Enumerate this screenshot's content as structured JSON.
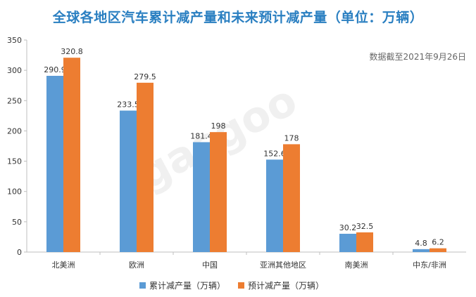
{
  "header": {
    "title": "全球各地区汽车累计减产量和未来预计减产量（单位：万辆）",
    "note": "数据截至2021年9月26日"
  },
  "watermark": {
    "text": "世汽车 gasgoo"
  },
  "chart_data": {
    "type": "bar",
    "title": "全球各地区汽车累计减产量和未来预计减产量（单位：万辆）",
    "categories": [
      "北美洲",
      "欧洲",
      "中国",
      "亚洲其他地区",
      "南美洲",
      "中东/非洲"
    ],
    "series": [
      {
        "name": "累计减产量（万辆）",
        "values": [
          290.9,
          233.5,
          181.4,
          152.6,
          30.2,
          4.8
        ],
        "labels": [
          "290.9",
          "233.5",
          "181.4",
          "152.6",
          "30.2",
          "4.8"
        ],
        "color": "#5b9bd5"
      },
      {
        "name": "预计减产量（万辆）",
        "values": [
          320.8,
          279.5,
          198,
          178,
          32.5,
          6.2
        ],
        "labels": [
          "320.8",
          "279.5",
          "198",
          "178",
          "32.5",
          "6.2"
        ],
        "color": "#ed7d31"
      }
    ],
    "yticks": [
      "0",
      "50",
      "100",
      "150",
      "200",
      "250",
      "300",
      "350"
    ],
    "ylim": [
      0,
      350
    ],
    "grid": false,
    "legend": "bottom"
  }
}
